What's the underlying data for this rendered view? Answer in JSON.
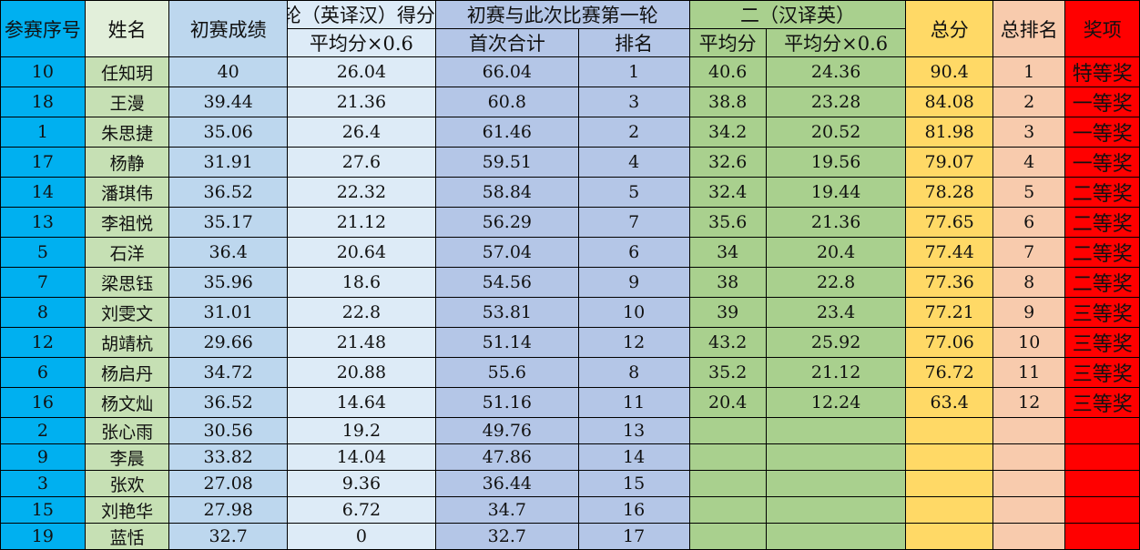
{
  "headers": {
    "id": "参赛序号",
    "name": "姓名",
    "prelim": "初赛成绩",
    "round1_group": "轮（英译汉）得分",
    "round1_avg06": "平均分×0.6",
    "combo_group": "初赛与此次比赛第一轮",
    "combo_total": "首次合计",
    "combo_rank": "排名",
    "round2_group": "二（汉译英）",
    "round2_avg": "平均分",
    "round2_avg06": "平均分×0.6",
    "total": "总分",
    "total_rank": "总排名",
    "award": "奖项"
  },
  "rows": [
    [
      "10",
      "任知玥",
      "40",
      "26.04",
      "66.04",
      "1",
      "40.6",
      "24.36",
      "90.4",
      "1",
      "特等奖"
    ],
    [
      "18",
      "王漫",
      "39.44",
      "21.36",
      "60.8",
      "3",
      "38.8",
      "23.28",
      "84.08",
      "2",
      "一等奖"
    ],
    [
      "1",
      "朱思捷",
      "35.06",
      "26.4",
      "61.46",
      "2",
      "34.2",
      "20.52",
      "81.98",
      "3",
      "一等奖"
    ],
    [
      "17",
      "杨静",
      "31.91",
      "27.6",
      "59.51",
      "4",
      "32.6",
      "19.56",
      "79.07",
      "4",
      "一等奖"
    ],
    [
      "14",
      "潘琪伟",
      "36.52",
      "22.32",
      "58.84",
      "5",
      "32.4",
      "19.44",
      "78.28",
      "5",
      "二等奖"
    ],
    [
      "13",
      "李祖悦",
      "35.17",
      "21.12",
      "56.29",
      "7",
      "35.6",
      "21.36",
      "77.65",
      "6",
      "二等奖"
    ],
    [
      "5",
      "石洋",
      "36.4",
      "20.64",
      "57.04",
      "6",
      "34",
      "20.4",
      "77.44",
      "7",
      "二等奖"
    ],
    [
      "7",
      "梁思钰",
      "35.96",
      "18.6",
      "54.56",
      "9",
      "38",
      "22.8",
      "77.36",
      "8",
      "二等奖"
    ],
    [
      "8",
      "刘雯文",
      "31.01",
      "22.8",
      "53.81",
      "10",
      "39",
      "23.4",
      "77.21",
      "9",
      "三等奖"
    ],
    [
      "12",
      "胡靖杭",
      "29.66",
      "21.48",
      "51.14",
      "12",
      "43.2",
      "25.92",
      "77.06",
      "10",
      "三等奖"
    ],
    [
      "6",
      "杨启丹",
      "34.72",
      "20.88",
      "55.6",
      "8",
      "35.2",
      "21.12",
      "76.72",
      "11",
      "三等奖"
    ],
    [
      "16",
      "杨文灿",
      "36.52",
      "14.64",
      "51.16",
      "11",
      "20.4",
      "12.24",
      "63.4",
      "12",
      "三等奖"
    ],
    [
      "2",
      "张心雨",
      "30.56",
      "19.2",
      "49.76",
      "13",
      "",
      "",
      "",
      "",
      ""
    ],
    [
      "9",
      "李晨",
      "33.82",
      "14.04",
      "47.86",
      "14",
      "",
      "",
      "",
      "",
      ""
    ],
    [
      "3",
      "张欢",
      "27.08",
      "9.36",
      "36.44",
      "15",
      "",
      "",
      "",
      "",
      ""
    ],
    [
      "15",
      "刘艳华",
      "27.98",
      "6.72",
      "34.7",
      "16",
      "",
      "",
      "",
      "",
      ""
    ],
    [
      "19",
      "蓝恬",
      "32.7",
      "0",
      "32.7",
      "17",
      "",
      "",
      "",
      "",
      ""
    ]
  ]
}
